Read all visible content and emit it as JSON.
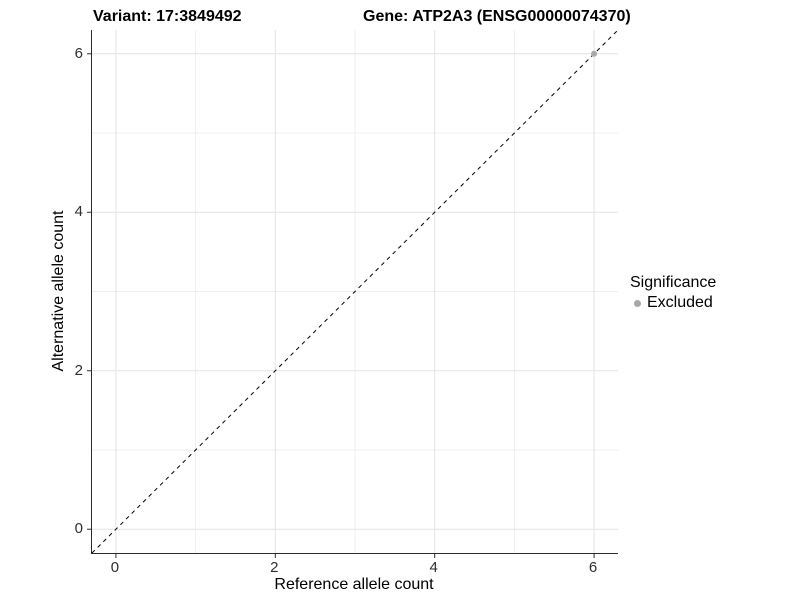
{
  "titles": {
    "variant": "Variant: 17:3849492",
    "gene": "Gene: ATP2A3 (ENSG00000074370)"
  },
  "axes": {
    "x": {
      "label": "Reference allele count"
    },
    "y": {
      "label": "Alternative allele count"
    }
  },
  "legend": {
    "title": "Significance",
    "items": [
      {
        "label": "Excluded",
        "color": "#a8a8a8"
      }
    ]
  },
  "chart_data": {
    "type": "scatter",
    "title": "Variant: 17:3849492   Gene: ATP2A3 (ENSG00000074370)",
    "xlabel": "Reference allele count",
    "ylabel": "Alternative allele count",
    "xlim": [
      -0.3,
      6.3
    ],
    "ylim": [
      -0.3,
      6.3
    ],
    "x_ticks": [
      0,
      2,
      4,
      6
    ],
    "y_ticks": [
      0,
      2,
      4,
      6
    ],
    "x_minor_ticks": [
      1,
      3,
      5
    ],
    "y_minor_ticks": [
      1,
      3,
      5
    ],
    "grid": true,
    "legend_position": "right",
    "series": [
      {
        "name": "Excluded",
        "color": "#a8a8a8",
        "points": [
          {
            "x": 6,
            "y": 6
          }
        ]
      }
    ],
    "reference_line": {
      "kind": "identity",
      "equation": "y = x",
      "style": "dashed",
      "color": "#000000"
    },
    "colors": {
      "grid_major": "#e3e3e3",
      "grid_minor": "#efefef",
      "axis_line": "#2b2b2b",
      "tick_mark": "#2b2b2b"
    }
  }
}
